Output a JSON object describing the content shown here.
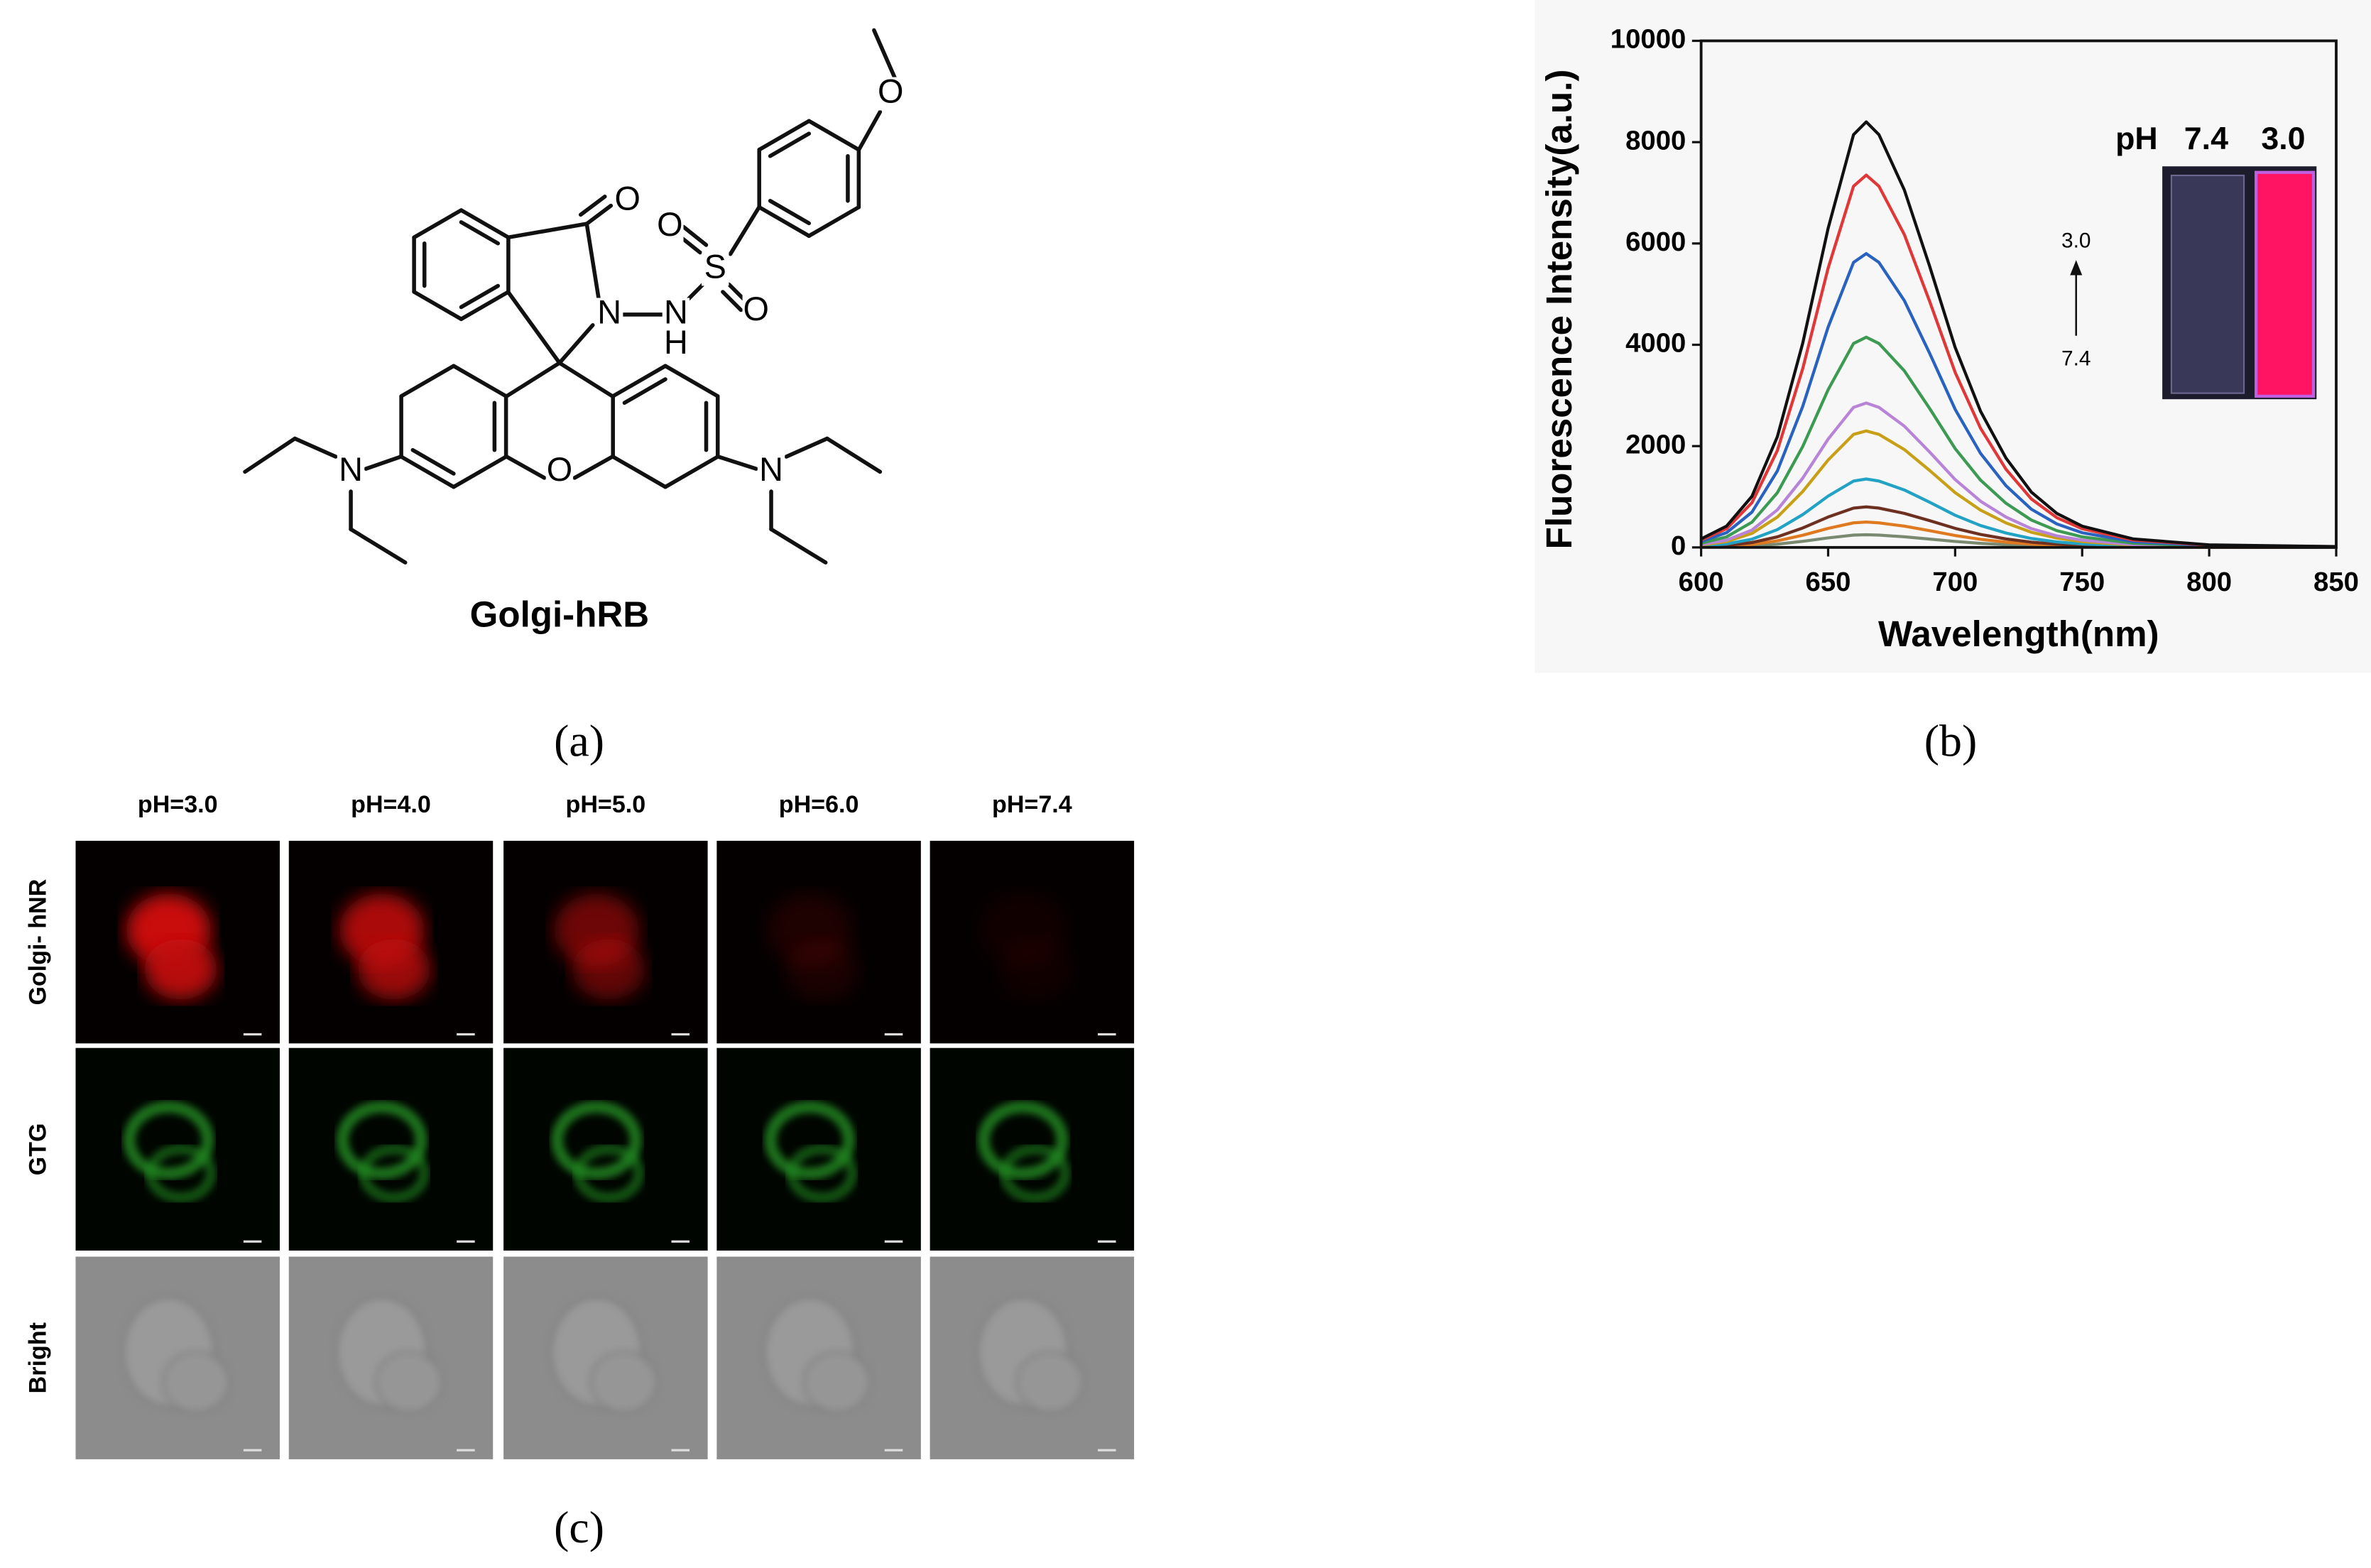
{
  "panel_labels": [
    "(a)",
    "(b)",
    "(c)"
  ],
  "structure": {
    "name": "Golgi-hRB",
    "atoms": [
      "O",
      "N",
      "N",
      "H",
      "S",
      "O",
      "O",
      "O",
      "O",
      "N",
      "N"
    ]
  },
  "micrographs": {
    "columns": [
      "pH=3.0",
      "pH=4.0",
      "pH=5.0",
      "pH=6.0",
      "pH=7.4"
    ],
    "rows": [
      "Golgi- hNR",
      "GTG",
      "Bright"
    ]
  },
  "chart_data": {
    "type": "line",
    "x_label": "Wavelength(nm)",
    "y_label": "Fluorescence Intensity(a.u.)",
    "annotations": [
      "pH",
      "7.4",
      "3.0",
      "3.0",
      "7.4"
    ],
    "x": [
      600,
      610,
      620,
      630,
      640,
      650,
      660,
      665,
      670,
      680,
      690,
      700,
      710,
      720,
      730,
      740,
      750,
      770,
      800,
      850
    ],
    "xlim": [
      600,
      850
    ],
    "xticks": [
      600,
      650,
      700,
      750,
      800,
      850
    ],
    "ylim": [
      0,
      10000
    ],
    "yticks": [
      0,
      2000,
      4000,
      6000,
      8000,
      10000
    ],
    "series": [
      {
        "color": "#111111",
        "values": [
          168,
          420,
          1008,
          2184,
          4032,
          6300,
          8148,
          8400,
          8148,
          7056,
          5544,
          3948,
          2688,
          1764,
          1092,
          672,
          420,
          168,
          50,
          17
        ]
      },
      {
        "color": "#e03838",
        "values": [
          147,
          368,
          882,
          1911,
          3528,
          5513,
          7130,
          7350,
          7130,
          6174,
          4851,
          3455,
          2352,
          1544,
          956,
          588,
          368,
          147,
          44,
          15
        ]
      },
      {
        "color": "#2a62c0",
        "values": [
          116,
          290,
          696,
          1508,
          2784,
          4350,
          5626,
          5800,
          5626,
          4872,
          3828,
          2726,
          1856,
          1218,
          754,
          464,
          290,
          116,
          35,
          12
        ]
      },
      {
        "color": "#3c9a52",
        "values": [
          83,
          208,
          498,
          1079,
          1992,
          3113,
          4026,
          4150,
          4026,
          3486,
          2739,
          1951,
          1328,
          872,
          540,
          332,
          208,
          83,
          25,
          8
        ]
      },
      {
        "color": "#b884d8",
        "values": [
          57,
          143,
          342,
          741,
          1368,
          2138,
          2765,
          2850,
          2765,
          2394,
          1881,
          1340,
          912,
          599,
          371,
          228,
          143,
          57,
          17,
          6
        ]
      },
      {
        "color": "#c8a018",
        "values": [
          46,
          115,
          276,
          598,
          1104,
          1725,
          2231,
          2300,
          2231,
          1932,
          1518,
          1081,
          736,
          483,
          299,
          184,
          115,
          46,
          14,
          5
        ]
      },
      {
        "color": "#22a2c4",
        "values": [
          27,
          68,
          162,
          351,
          648,
          1013,
          1310,
          1350,
          1310,
          1134,
          891,
          635,
          432,
          284,
          176,
          108,
          68,
          27,
          8,
          3
        ]
      },
      {
        "color": "#6e3020",
        "values": [
          16,
          40,
          96,
          208,
          384,
          600,
          776,
          800,
          776,
          672,
          528,
          376,
          256,
          168,
          104,
          64,
          40,
          16,
          5,
          2
        ]
      },
      {
        "color": "#e07a20",
        "values": [
          10,
          25,
          60,
          130,
          240,
          375,
          485,
          500,
          485,
          420,
          330,
          235,
          160,
          105,
          65,
          40,
          25,
          10,
          3,
          1
        ]
      },
      {
        "color": "#7a8a70",
        "values": [
          5,
          13,
          30,
          65,
          120,
          188,
          243,
          250,
          243,
          210,
          165,
          118,
          80,
          53,
          33,
          20,
          13,
          5,
          2,
          1
        ]
      }
    ]
  }
}
